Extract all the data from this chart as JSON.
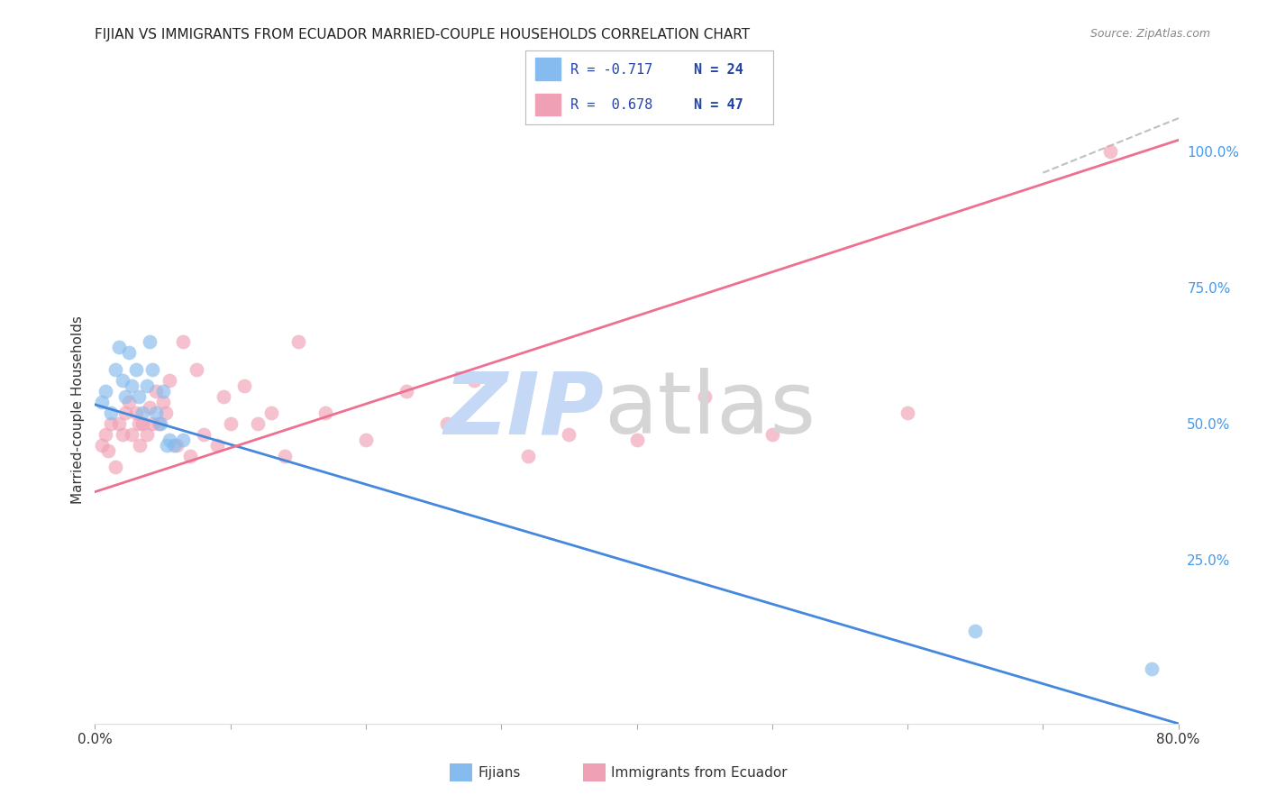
{
  "title": "FIJIAN VS IMMIGRANTS FROM ECUADOR MARRIED-COUPLE HOUSEHOLDS CORRELATION CHART",
  "source": "Source: ZipAtlas.com",
  "ylabel": "Married-couple Households",
  "xlim": [
    0.0,
    0.8
  ],
  "ylim": [
    -0.05,
    1.1
  ],
  "xticks": [
    0.0,
    0.1,
    0.2,
    0.3,
    0.4,
    0.5,
    0.6,
    0.7,
    0.8
  ],
  "yticks_right": [
    0.25,
    0.5,
    0.75,
    1.0
  ],
  "yticklabels_right": [
    "25.0%",
    "50.0%",
    "75.0%",
    "100.0%"
  ],
  "legend_r1": "R = -0.717",
  "legend_n1": "N = 24",
  "legend_r2": "R =  0.678",
  "legend_n2": "N = 47",
  "fijian_color": "#85BBEE",
  "ecuador_color": "#F0A0B5",
  "blue_line_color": "#4488DD",
  "pink_line_color": "#EE7090",
  "dashed_line_color": "#C0C0C0",
  "background_color": "#FFFFFF",
  "fijian_x": [
    0.005,
    0.008,
    0.012,
    0.015,
    0.018,
    0.02,
    0.022,
    0.025,
    0.027,
    0.03,
    0.032,
    0.035,
    0.038,
    0.04,
    0.042,
    0.045,
    0.048,
    0.05,
    0.053,
    0.055,
    0.058,
    0.065,
    0.65,
    0.78
  ],
  "fijian_y": [
    0.54,
    0.56,
    0.52,
    0.6,
    0.64,
    0.58,
    0.55,
    0.63,
    0.57,
    0.6,
    0.55,
    0.52,
    0.57,
    0.65,
    0.6,
    0.52,
    0.5,
    0.56,
    0.46,
    0.47,
    0.46,
    0.47,
    0.12,
    0.05
  ],
  "ecuador_x": [
    0.005,
    0.008,
    0.01,
    0.012,
    0.015,
    0.018,
    0.02,
    0.022,
    0.025,
    0.027,
    0.03,
    0.032,
    0.033,
    0.035,
    0.038,
    0.04,
    0.042,
    0.045,
    0.047,
    0.05,
    0.052,
    0.055,
    0.06,
    0.065,
    0.07,
    0.075,
    0.08,
    0.09,
    0.095,
    0.1,
    0.11,
    0.12,
    0.13,
    0.14,
    0.15,
    0.17,
    0.2,
    0.23,
    0.26,
    0.28,
    0.32,
    0.35,
    0.4,
    0.45,
    0.5,
    0.6,
    0.75
  ],
  "ecuador_y": [
    0.46,
    0.48,
    0.45,
    0.5,
    0.42,
    0.5,
    0.48,
    0.52,
    0.54,
    0.48,
    0.52,
    0.5,
    0.46,
    0.5,
    0.48,
    0.53,
    0.5,
    0.56,
    0.5,
    0.54,
    0.52,
    0.58,
    0.46,
    0.65,
    0.44,
    0.6,
    0.48,
    0.46,
    0.55,
    0.5,
    0.57,
    0.5,
    0.52,
    0.44,
    0.65,
    0.52,
    0.47,
    0.56,
    0.5,
    0.58,
    0.44,
    0.48,
    0.47,
    0.55,
    0.48,
    0.52,
    1.0
  ],
  "blue_line_x": [
    0.0,
    0.8
  ],
  "blue_line_y": [
    0.535,
    -0.05
  ],
  "pink_line_x": [
    0.0,
    0.8
  ],
  "pink_line_y": [
    0.375,
    1.02
  ],
  "dashed_line_x": [
    0.7,
    0.84
  ],
  "dashed_line_y": [
    0.96,
    1.1
  ]
}
